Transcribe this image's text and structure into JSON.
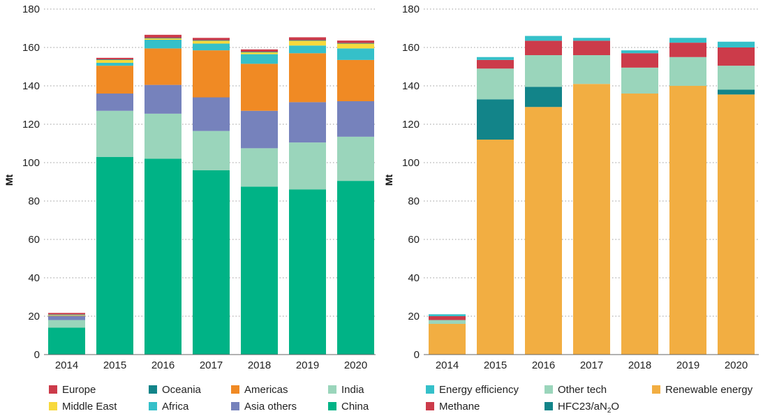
{
  "chart_data": [
    {
      "type": "bar",
      "stacked": true,
      "title": "",
      "xlabel": "",
      "ylabel": "Mt",
      "ylim": [
        0,
        180
      ],
      "yticks": [
        0,
        20,
        40,
        60,
        80,
        100,
        120,
        140,
        160,
        180
      ],
      "grid": true,
      "legend_position": "bottom",
      "categories": [
        "2014",
        "2015",
        "2016",
        "2017",
        "2018",
        "2019",
        "2020"
      ],
      "series": [
        {
          "name": "China",
          "color": "#00b386",
          "values": [
            14,
            103,
            102,
            96,
            87.5,
            86,
            90.5
          ]
        },
        {
          "name": "India",
          "color": "#9ad5bb",
          "values": [
            4,
            24,
            23.5,
            20.5,
            20,
            24.5,
            23
          ]
        },
        {
          "name": "Asia others",
          "color": "#7682bc",
          "values": [
            2,
            9,
            15,
            17.5,
            19.5,
            21,
            18.5
          ]
        },
        {
          "name": "Americas",
          "color": "#f08a24",
          "values": [
            0.3,
            14.5,
            19,
            24.5,
            24.5,
            25.5,
            21.5
          ]
        },
        {
          "name": "Africa",
          "color": "#35c0c9",
          "values": [
            0.3,
            1.5,
            4.5,
            3.5,
            5,
            4,
            6
          ]
        },
        {
          "name": "Middle East",
          "color": "#f7d93d",
          "values": [
            0.2,
            1.5,
            0.7,
            1.5,
            1,
            2.5,
            2.5
          ]
        },
        {
          "name": "Oceania",
          "color": "#128489",
          "values": [
            0.1,
            0.3,
            0.3,
            0.3,
            0.3,
            0.3,
            0.3
          ]
        },
        {
          "name": "Europe",
          "color": "#cc3b4a",
          "values": [
            0.8,
            0.8,
            1.6,
            1.2,
            1.2,
            1.5,
            1.3
          ]
        }
      ],
      "legend": [
        [
          "Europe",
          "Oceania",
          "Americas",
          "India"
        ],
        [
          "Middle East",
          "Africa",
          "Asia others",
          "China"
        ]
      ]
    },
    {
      "type": "bar",
      "stacked": true,
      "title": "",
      "xlabel": "",
      "ylabel": "Mt",
      "ylim": [
        0,
        180
      ],
      "yticks": [
        0,
        20,
        40,
        60,
        80,
        100,
        120,
        140,
        160,
        180
      ],
      "grid": true,
      "legend_position": "bottom",
      "categories": [
        "2014",
        "2015",
        "2016",
        "2017",
        "2018",
        "2019",
        "2020"
      ],
      "series": [
        {
          "name": "Renewable energy",
          "color": "#f2ae42",
          "values": [
            16,
            112,
            129,
            141,
            136,
            140,
            135.5
          ]
        },
        {
          "name": "HFC23/aN2O",
          "color": "#128489",
          "values": [
            0,
            21,
            10.5,
            0,
            0,
            0,
            2.5
          ]
        },
        {
          "name": "Other tech",
          "color": "#9ad5bb",
          "values": [
            2,
            16,
            16.5,
            15,
            13.5,
            15,
            12.5
          ]
        },
        {
          "name": "Methane",
          "color": "#cc3b4a",
          "values": [
            2,
            4.5,
            7.5,
            7.5,
            7.5,
            7.5,
            9.5
          ]
        },
        {
          "name": "Energy efficiency",
          "color": "#35c0c9",
          "values": [
            1,
            1.5,
            2.5,
            1.5,
            1.5,
            2.5,
            3
          ]
        }
      ],
      "legend": [
        [
          "Energy efficiency",
          "Other tech",
          "Renewable energy"
        ],
        [
          "Methane",
          "HFC23/aN2O"
        ]
      ]
    }
  ]
}
